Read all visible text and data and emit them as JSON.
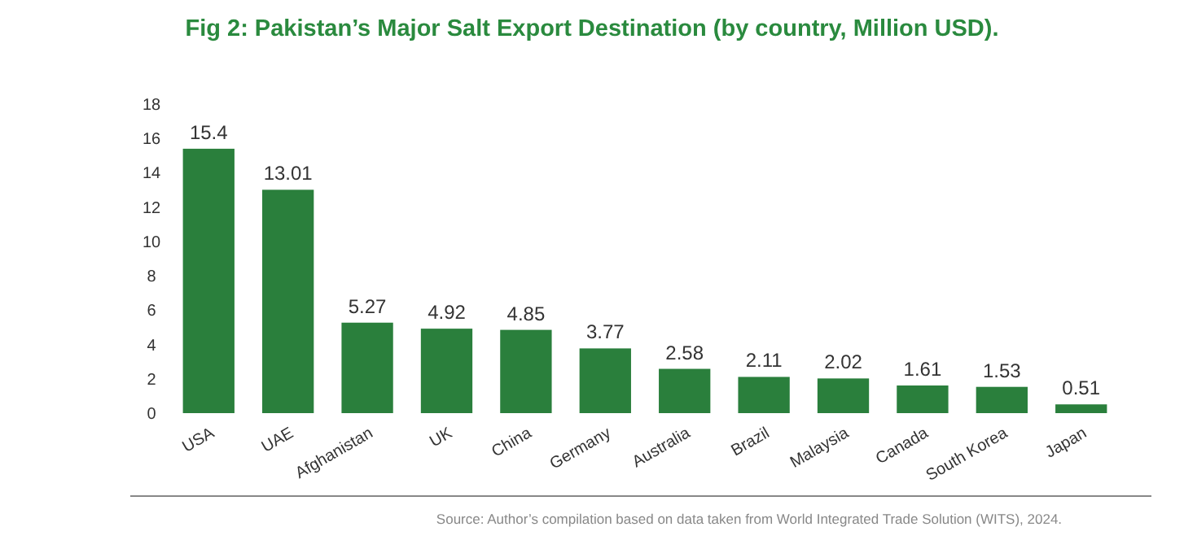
{
  "chart_data": {
    "type": "bar",
    "title": "Fig 2: Pakistan’s Major Salt Export Destination (by country, Million USD).",
    "categories": [
      "USA",
      "UAE",
      "Afghanistan",
      "UK",
      "China",
      "Germany",
      "Australia",
      "Brazil",
      "Malaysia",
      "Canada",
      "South Korea",
      "Japan"
    ],
    "values": [
      15.4,
      13.01,
      5.27,
      4.92,
      4.85,
      3.77,
      2.58,
      2.11,
      2.02,
      1.61,
      1.53,
      0.51
    ],
    "color": "#2a7f3c",
    "ylim": [
      0,
      18
    ],
    "yticks": [
      0,
      2,
      4,
      6,
      8,
      10,
      12,
      14,
      16,
      18
    ],
    "grid": false,
    "data_labels": true,
    "annotations": [
      "Source: Author’s compilation based on data taken from World Integrated Trade Solution (WITS), 2024."
    ]
  }
}
